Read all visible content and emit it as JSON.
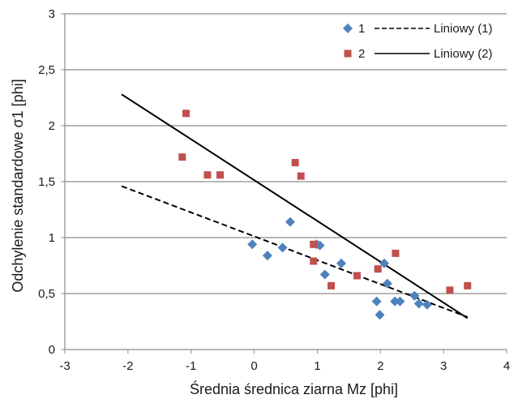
{
  "chart_data": {
    "type": "scatter",
    "xlabel": "Średnia średnica ziarna  Mz [phi]",
    "ylabel": "Odchylenie standardowe  σ1 [phi]",
    "xlim": [
      -3,
      4
    ],
    "ylim": [
      0,
      3
    ],
    "x_ticks": [
      "-3",
      "-2",
      "-1",
      "0",
      "1",
      "2",
      "3",
      "4"
    ],
    "y_ticks": [
      "0",
      "0,5",
      "1",
      "1,5",
      "2",
      "2,5",
      "3"
    ],
    "grid": "horizontal",
    "legend_position": "top-right",
    "series": [
      {
        "name": "1",
        "marker": "diamond",
        "color": "#4F81BD",
        "points": [
          [
            -0.03,
            0.94
          ],
          [
            0.21,
            0.84
          ],
          [
            0.45,
            0.91
          ],
          [
            0.57,
            1.14
          ],
          [
            0.99,
            0.94
          ],
          [
            1.04,
            0.93
          ],
          [
            1.12,
            0.67
          ],
          [
            1.38,
            0.77
          ],
          [
            1.94,
            0.43
          ],
          [
            1.99,
            0.31
          ],
          [
            2.06,
            0.77
          ],
          [
            2.11,
            0.59
          ],
          [
            2.23,
            0.43
          ],
          [
            2.31,
            0.43
          ],
          [
            2.54,
            0.48
          ],
          [
            2.61,
            0.41
          ],
          [
            2.74,
            0.4
          ]
        ]
      },
      {
        "name": "2",
        "marker": "square",
        "color": "#C0504D",
        "points": [
          [
            -1.08,
            2.11
          ],
          [
            -1.14,
            1.72
          ],
          [
            -0.74,
            1.56
          ],
          [
            -0.54,
            1.56
          ],
          [
            0.65,
            1.67
          ],
          [
            0.74,
            1.55
          ],
          [
            0.94,
            0.94
          ],
          [
            0.94,
            0.79
          ],
          [
            1.22,
            0.57
          ],
          [
            1.63,
            0.66
          ],
          [
            1.96,
            0.72
          ],
          [
            2.24,
            0.86
          ],
          [
            3.1,
            0.53
          ],
          [
            3.38,
            0.57
          ]
        ]
      }
    ],
    "trendlines": [
      {
        "name": "Liniowy (1)",
        "style": "dashed",
        "color": "#000000",
        "x": [
          -2.1,
          3.38
        ],
        "y": [
          1.46,
          0.29
        ]
      },
      {
        "name": "Liniowy (2)",
        "style": "solid",
        "color": "#000000",
        "x": [
          -2.1,
          3.38
        ],
        "y": [
          2.28,
          0.28
        ]
      }
    ]
  }
}
